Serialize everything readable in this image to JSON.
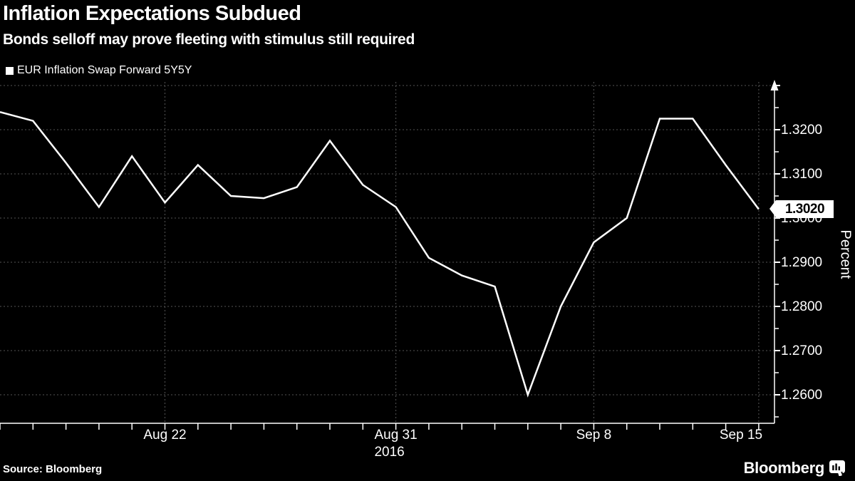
{
  "header": {
    "title": "Inflation Expectations Subdued",
    "subtitle": "Bonds selloff may prove fleeting with stimulus still required"
  },
  "legend": {
    "label": "EUR Inflation Swap Forward 5Y5Y"
  },
  "footer": {
    "source": "Source: Bloomberg",
    "brand": "Bloomberg"
  },
  "chart_data": {
    "type": "line",
    "title": "Inflation Expectations Subdued",
    "series_name": "EUR Inflation Swap Forward 5Y5Y",
    "x": [
      "Aug 15",
      "Aug 16",
      "Aug 17",
      "Aug 18",
      "Aug 19",
      "Aug 22",
      "Aug 23",
      "Aug 24",
      "Aug 25",
      "Aug 26",
      "Aug 29",
      "Aug 30",
      "Aug 31",
      "Sep 1",
      "Sep 2",
      "Sep 5",
      "Sep 6",
      "Sep 7",
      "Sep 8",
      "Sep 9",
      "Sep 12",
      "Sep 13",
      "Sep 14",
      "Sep 15"
    ],
    "values": [
      1.324,
      1.322,
      1.3125,
      1.3025,
      1.314,
      1.3035,
      1.312,
      1.305,
      1.3045,
      1.307,
      1.3175,
      1.3075,
      1.3025,
      1.291,
      1.287,
      1.2845,
      1.26,
      1.28,
      1.2945,
      1.3,
      1.3225,
      1.3225,
      1.312,
      1.302
    ],
    "xlabel": "",
    "ylabel": "Percent",
    "year_label": "2016",
    "ylim": [
      1.2535,
      1.331
    ],
    "grid": "dashed",
    "legend_position": "top-left",
    "y_ticks": [
      {
        "value": 1.32,
        "label": "1.3200"
      },
      {
        "value": 1.31,
        "label": "1.3100"
      },
      {
        "value": 1.3,
        "label": "1.3000"
      },
      {
        "value": 1.29,
        "label": "1.2900"
      },
      {
        "value": 1.28,
        "label": "1.2800"
      },
      {
        "value": 1.27,
        "label": "1.2700"
      },
      {
        "value": 1.26,
        "label": "1.2600"
      }
    ],
    "y_gridline_values": [
      1.26,
      1.27,
      1.28,
      1.29,
      1.3,
      1.31,
      1.32,
      1.33
    ],
    "x_ticks": [
      {
        "index": 5,
        "label": "Aug 22"
      },
      {
        "index": 12,
        "label": "Aug 31",
        "sub": "2016"
      },
      {
        "index": 18,
        "label": "Sep 8"
      },
      {
        "index": 23,
        "label": "Sep 15"
      }
    ],
    "last_value_label": "1.3020",
    "colors": {
      "background": "#000000",
      "line": "#ffffff",
      "grid": "#555555",
      "axis": "#ffffff",
      "text": "#ffffff",
      "badge_bg": "#ffffff",
      "badge_text": "#000000"
    }
  }
}
